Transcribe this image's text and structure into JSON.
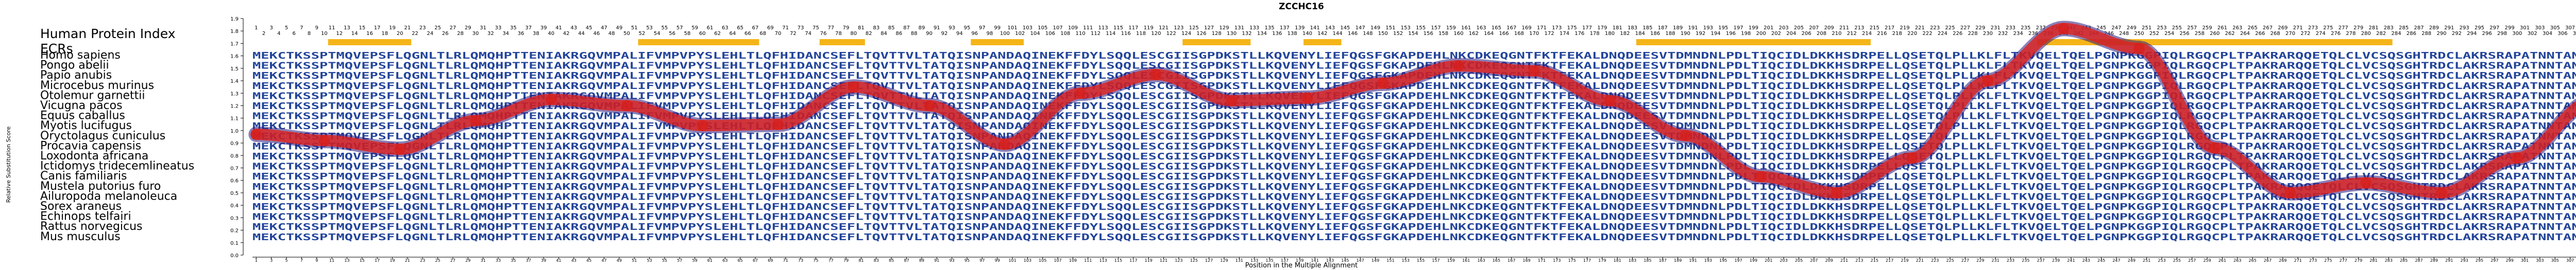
{
  "chart_data": {
    "type": "line",
    "title": "ZCCHC16",
    "xlabel": "Position in the Multiple Alignment",
    "ylabel": "Relative Substitution Score",
    "ylim": [
      0.0,
      1.9
    ],
    "yticks": [
      0.0,
      0.1,
      0.2,
      0.3,
      0.4,
      0.5,
      0.6,
      0.7,
      0.8,
      0.9,
      1.0,
      1.1,
      1.2,
      1.3,
      1.4,
      1.5,
      1.6,
      1.7,
      1.8,
      1.9
    ],
    "xlim": [
      1,
      310
    ],
    "header_label": "Human Protein Index",
    "ecr_label": "ECRs",
    "ecr_regions": [
      [
        11,
        21
      ],
      [
        52,
        67
      ],
      [
        76,
        81
      ],
      [
        96,
        102
      ],
      [
        124,
        132
      ],
      [
        140,
        144
      ],
      [
        184,
        214
      ],
      [
        237,
        283
      ]
    ],
    "species": [
      "Homo sapiens",
      "Pongo abelii",
      "Papio anubis",
      "Microcebus murinus",
      "Otolemur garnettii",
      "Vicugna pacos",
      "Equus caballus",
      "Myotis lucifugus",
      "Oryctolagus cuniculus",
      "Procavia capensis",
      "Loxodonta africana",
      "Ictidomys tridecemlineatus",
      "Canis familiaris",
      "Mustela putorius furo",
      "Ailuropoda melanoleuca",
      "Sorex araneus",
      "Echinops telfairi",
      "Rattus norvegicus",
      "Mus musculus"
    ],
    "sequences": [
      "MEKCTKSSPTMQVEPSFLQGNLTLRLQMQHPTTENIAKRGQVMPALIFVMPVPYSLEHLTLQFHIDANCSEFLTQVTTVLTATQISNPANDAQINEKFFDYLSQQLESCGIISGPDKSTLLKQVENYLIEFQGSFGKAPDEHLNKCDKEQGNTFKTFEKALDNQDEESVTDMNDNLPDLTIQCIDLDKKHSDRPELLQSETQLPLLKLFLTKVQELTQELPGNPKGGPIQLRGQCPLTPAKRARQQETQLCLVCSQSGHTRDCLAKRSRAPATNNTANNT",
      "MEKCTKSSPTMQVEPSFLQGNLTLRLQMQHPTTENIAKRGQVMPALIFVMPVPYSLEHLTLQFHIDANCSEFLTQVTTVLTATQISNPANDAQINEKFFDYLSQQLESCGIISGPDKSTLLKQVENYLIEFQGSFGKAPDEHLNKCDKEQGNTFKTFEKALDNQDEESVTDMNDNLPDLTIQCIDLDKKHSDRPELLQSETQLPLLKLFLTKVQELTQELPGNPKGGPIQLRGQCPLTPAKRARQQETQLCLVCSQSGHTRDCLAKRSRAPATNNTANNT",
      "MEKCTKSSPTMQVEPSFLQGNLTLRLQMQHPTTENIAKRGQVMPALIFVMPVPYSLEHLTLQFHIDANCSEFLTQVTTVLTATQISNPANDAQINEKFFDYLSQQLESCGIISGPDKSTLLKQVENYLIEFQGSFGKAPDEHLNKCDKEQGNTFKTFEKALDNQDEESVTDMNDNLPDLTIQCIDLDKKHSDRPELLQSETQLPLLKLFLTKVQELTQELPGNPKGGPIQLRGQCPLTPAKRARQQETQLCLVCSQSGHTRDCLAKRSRAPATNNTANNT",
      "MEKCTKSSPTMQVEPSFLQGNLTLRLQMQHPTTENIAKRGQVMPALIFVMPVPYSLEHLTLQFHIDANCSEFLTQVTTVLTATQISNPANDAQINEKFFDYLSQQLESCGIISGPDKSTLLKQVENYLIEFQGSFGKAPDEHLNKCDKEQGNTFKTFEKALDNQDEESVTDMNDNLPDLTIQCIDLDKKHSDRPELLQSETQLPLLKLFLTKVQELTQELPGNPKGGPIQLRGQCPLTPAKRARQQETQLCLVCSQSGHTRDCLAKRSRAPATNNTANNT",
      "MEKCTKSSPTMQVEPSFLQGNLTLRLQMQHPTTENIAKRGQVMPALIFVMPVPYSLEHLTLQFHIDANCSEFLTQVTTVLTATQISNPANDAQINEKFFDYLSQQLESCGIISGPDKSTLLKQVENYLIEFQGSFGKAPDEHLNKCDKEQGNTFKTFEKALDNQDEESVTDMNDNLPDLTIQCIDLDKKHSDRPELLQSETQLPLLKLFLTKVQELTQELPGNPKGGPIQLRGQCPLTPAKRARQQETQLCLVCSQSGHTRDCLAKRSRAPATNNTANNT",
      "MEKCTKSSPTMQVEPSFLQGNLTLRLQMQHPTTENIAKRGQVMPALIFVMPVPYSLEHLTLQFHIDANCSEFLTQVTTVLTATQISNPANDAQINEKFFDYLSQQLESCGIISGPDKSTLLKQVENYLIEFQGSFGKAPDEHLNKCDKEQGNTFKTFEKALDNQDEESVTDMNDNLPDLTIQCIDLDKKHSDRPELLQSETQLPLLKLFLTKVQELTQELPGNPKGGPIQLRGQCPLTPAKRARQQETQLCLVCSQSGHTRDCLAKRSRAPATNNTANNT",
      "MEKCTKSSPTMQVEPSFLQGNLTLRLQMQHPTTENIAKRGQVMPALIFVMPVPYSLEHLTLQFHIDANCSEFLTQVTTVLTATQISNPANDAQINEKFFDYLSQQLESCGIISGPDKSTLLKQVENYLIEFQGSFGKAPDEHLNKCDKEQGNTFKTFEKALDNQDEESVTDMNDNLPDLTIQCIDLDKKHSDRPELLQSETQLPLLKLFLTKVQELTQELPGNPKGGPIQLRGQCPLTPAKRARQQETQLCLVCSQSGHTRDCLAKRSRAPATNNTANNT",
      "MEKCTKSSPTMQVEPSFLQGNLTLRLQMQHPTTENIAKRGQVMPALIFVMPVPYSLEHLTLQFHIDANCSEFLTQVTTVLTATQISNPANDAQINEKFFDYLSQQLESCGIISGPDKSTLLKQVENYLIEFQGSFGKAPDEHLNKCDKEQGNTFKTFEKALDNQDEESVTDMNDNLPDLTIQCIDLDKKHSDRPELLQSETQLPLLKLFLTKVQELTQELPGNPKGGPIQLRGQCPLTPAKRARQQETQLCLVCSQSGHTRDCLAKRSRAPATNNTANNT",
      "MEKCTKSSPTMQVEPSFLQGNLTLRLQMQHPTTENIAKRGQVMPALIFVMPVPYSLEHLTLQFHIDANCSEFLTQVTTVLTATQISNPANDAQINEKFFDYLSQQLESCGIISGPDKSTLLKQVENYLIEFQGSFGKAPDEHLNKCDKEQGNTFKTFEKALDNQDEESVTDMNDNLPDLTIQCIDLDKKHSDRPELLQSETQLPLLKLFLTKVQELTQELPGNPKGGPIQLRGQCPLTPAKRARQQETQLCLVCSQSGHTRDCLAKRSRAPATNNTANNT",
      "MEKCTKSSPTMQVEPSFLQGNLTLRLQMQHPTTENIAKRGQVMPALIFVMPVPYSLEHLTLQFHIDANCSEFLTQVTTVLTATQISNPANDAQINEKFFDYLSQQLESCGIISGPDKSTLLKQVENYLIEFQGSFGKAPDEHLNKCDKEQGNTFKTFEKALDNQDEESVTDMNDNLPDLTIQCIDLDKKHSDRPELLQSETQLPLLKLFLTKVQELTQELPGNPKGGPIQLRGQCPLTPAKRARQQETQLCLVCSQSGHTRDCLAKRSRAPATNNTANNT",
      "MEKCTKSSPTMQVEPSFLQGNLTLRLQMQHPTTENIAKRGQVMPALIFVMPVPYSLEHLTLQFHIDANCSEFLTQVTTVLTATQISNPANDAQINEKFFDYLSQQLESCGIISGPDKSTLLKQVENYLIEFQGSFGKAPDEHLNKCDKEQGNTFKTFEKALDNQDEESVTDMNDNLPDLTIQCIDLDKKHSDRPELLQSETQLPLLKLFLTKVQELTQELPGNPKGGPIQLRGQCPLTPAKRARQQETQLCLVCSQSGHTRDCLAKRSRAPATNNTANNT",
      "MEKCTKSSPTMQVEPSFLQGNLTLRLQMQHPTTENIAKRGQVMPALIFVMPVPYSLEHLTLQFHIDANCSEFLTQVTTVLTATQISNPANDAQINEKFFDYLSQQLESCGIISGPDKSTLLKQVENYLIEFQGSFGKAPDEHLNKCDKEQGNTFKTFEKALDNQDEESVTDMNDNLPDLTIQCIDLDKKHSDRPELLQSETQLPLLKLFLTKVQELTQELPGNPKGGPIQLRGQCPLTPAKRARQQETQLCLVCSQSGHTRDCLAKRSRAPATNNTANNT",
      "MEKCTKSSPTMQVEPSFLQGNLTLRLQMQHPTTENIAKRGQVMPALIFVMPVPYSLEHLTLQFHIDANCSEFLTQVTTVLTATQISNPANDAQINEKFFDYLSQQLESCGIISGPDKSTLLKQVENYLIEFQGSFGKAPDEHLNKCDKEQGNTFKTFEKALDNQDEESVTDMNDNLPDLTIQCIDLDKKHSDRPELLQSETQLPLLKLFLTKVQELTQELPGNPKGGPIQLRGQCPLTPAKRARQQETQLCLVCSQSGHTRDCLAKRSRAPATNNTANNT",
      "MEKCTKSSPTMQVEPSFLQGNLTLRLQMQHPTTENIAKRGQVMPALIFVMPVPYSLEHLTLQFHIDANCSEFLTQVTTVLTATQISNPANDAQINEKFFDYLSQQLESCGIISGPDKSTLLKQVENYLIEFQGSFGKAPDEHLNKCDKEQGNTFKTFEKALDNQDEESVTDMNDNLPDLTIQCIDLDKKHSDRPELLQSETQLPLLKLFLTKVQELTQELPGNPKGGPIQLRGQCPLTPAKRARQQETQLCLVCSQSGHTRDCLAKRSRAPATNNTANNT",
      "MEKCTKSSPTMQVEPSFLQGNLTLRLQMQHPTTENIAKRGQVMPALIFVMPVPYSLEHLTLQFHIDANCSEFLTQVTTVLTATQISNPANDAQINEKFFDYLSQQLESCGIISGPDKSTLLKQVENYLIEFQGSFGKAPDEHLNKCDKEQGNTFKTFEKALDNQDEESVTDMNDNLPDLTIQCIDLDKKHSDRPELLQSETQLPLLKLFLTKVQELTQELPGNPKGGPIQLRGQCPLTPAKRARQQETQLCLVCSQSGHTRDCLAKRSRAPATNNTANNT",
      "MEKCTKSSPTMQVEPSFLQGNLTLRLQMQHPTTENIAKRGQVMPALIFVMPVPYSLEHLTLQFHIDANCSEFLTQVTTVLTATQISNPANDAQINEKFFDYLSQQLESCGIISGPDKSTLLKQVENYLIEFQGSFGKAPDEHLNKCDKEQGNTFKTFEKALDNQDEESVTDMNDNLPDLTIQCIDLDKKHSDRPELLQSETQLPLLKLFLTKVQELTQELPGNPKGGPIQLRGQCPLTPAKRARQQETQLCLVCSQSGHTRDCLAKRSRAPATNNTANNT",
      "MEKCTKSSPTMQVEPSFLQGNLTLRLQMQHPTTENIAKRGQVMPALIFVMPVPYSLEHLTLQFHIDANCSEFLTQVTTVLTATQISNPANDAQINEKFFDYLSQQLESCGIISGPDKSTLLKQVENYLIEFQGSFGKAPDEHLNKCDKEQGNTFKTFEKALDNQDEESVTDMNDNLPDLTIQCIDLDKKHSDRPELLQSETQLPLLKLFLTKVQELTQELPGNPKGGPIQLRGQCPLTPAKRARQQETQLCLVCSQSGHTRDCLAKRSRAPATNNTANNT",
      "MEKCTKSSPTMQVEPSFLQGNLTLRLQMQHPTTENIAKRGQVMPALIFVMPVPYSLEHLTLQFHIDANCSEFLTQVTTVLTATQISNPANDAQINEKFFDYLSQQLESCGIISGPDKSTLLKQVENYLIEFQGSFGKAPDEHLNKCDKEQGNTFKTFEKALDNQDEESVTDMNDNLPDLTIQCIDLDKKHSDRPELLQSETQLPLLKLFLTKVQELTQELPGNPKGGPIQLRGQCPLTPAKRARQQETQLCLVCSQSGHTRDCLAKRSRAPATNNTANNT",
      "MEKCTKSSPTMQVEPSFLQGNLTLRLQMQHPTTENIAKRGQVMPALIFVMPVPYSLEHLTLQFHIDANCSEFLTQVTTVLTATQISNPANDAQINEKFFDYLSQQLESCGIISGPDKSTLLKQVENYLIEFQGSFGKAPDEHLNKCDKEQGNTFKTFEKALDNQDEESVTDMNDNLPDLTIQCIDLDKKHSDRPELLQSETQLPLLKLFLTKVQELTQELPGNPKGGPIQLRGQCPLTPAKRARQQETQLCLVCSQSGHTRDCLAKRSRAPATNNTANNT"
    ],
    "curve": {
      "x": [
        1,
        10,
        20,
        30,
        40,
        50,
        60,
        70,
        80,
        90,
        100,
        110,
        120,
        130,
        140,
        150,
        160,
        170,
        180,
        190,
        200,
        210,
        220,
        230,
        240,
        250,
        260,
        270,
        280,
        290,
        300,
        310
      ],
      "y": [
        0.97,
        0.92,
        0.85,
        1.08,
        1.25,
        1.2,
        1.04,
        1.05,
        1.35,
        1.2,
        0.89,
        1.3,
        1.45,
        1.24,
        1.26,
        1.38,
        1.52,
        1.48,
        1.24,
        0.96,
        0.63,
        0.5,
        0.78,
        1.4,
        1.82,
        1.66,
        0.86,
        0.5,
        0.58,
        0.5,
        0.78,
        1.24
      ]
    }
  }
}
